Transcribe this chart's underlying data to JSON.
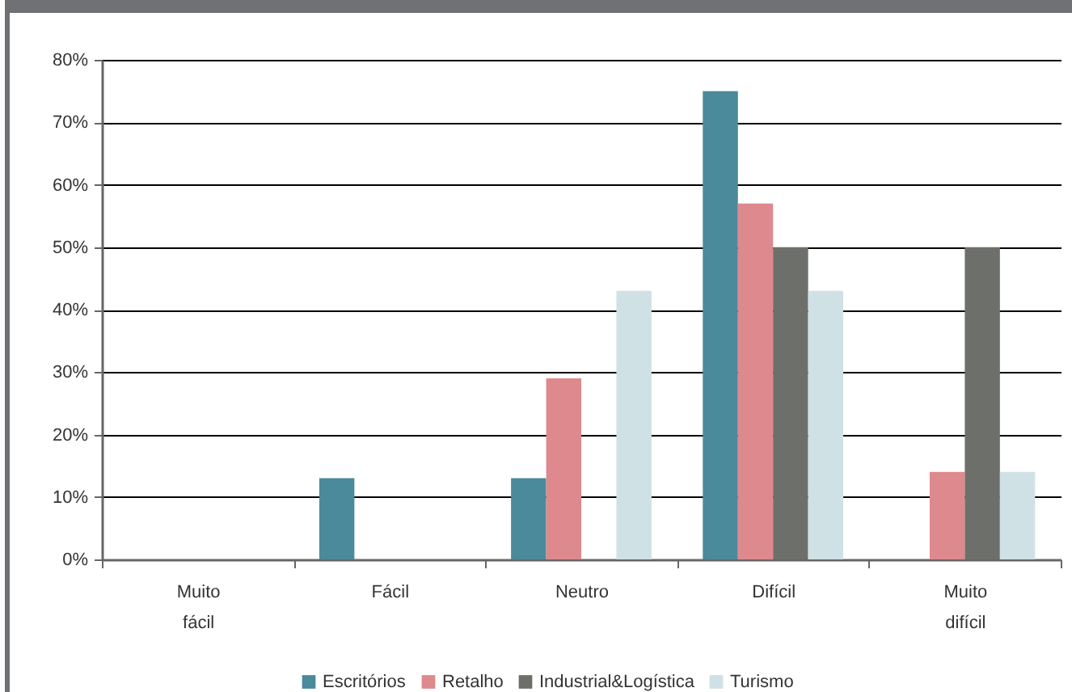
{
  "chart_data": {
    "type": "bar",
    "categories": [
      "Muito fácil",
      "Fácil",
      "Neutro",
      "Difícil",
      "Muito difícil"
    ],
    "series": [
      {
        "name": "Escritórios",
        "color": "#4a8a9a",
        "values": [
          0,
          13,
          13,
          75,
          0
        ]
      },
      {
        "name": "Retalho",
        "color": "#de898d",
        "values": [
          0,
          0,
          29,
          57,
          14
        ]
      },
      {
        "name": "Industrial&Logística",
        "color": "#6d6f6a",
        "values": [
          0,
          0,
          0,
          50,
          50
        ]
      },
      {
        "name": "Turismo",
        "color": "#d0e1e6",
        "values": [
          0,
          0,
          43,
          43,
          14
        ]
      }
    ],
    "ylim": [
      0,
      80
    ],
    "yticks": [
      {
        "value": 0,
        "label": "0%"
      },
      {
        "value": 10,
        "label": "10%"
      },
      {
        "value": 20,
        "label": "20%"
      },
      {
        "value": 30,
        "label": "30%"
      },
      {
        "value": 40,
        "label": "40%"
      },
      {
        "value": 50,
        "label": "50%"
      },
      {
        "value": 60,
        "label": "60%"
      },
      {
        "value": 70,
        "label": "70%"
      },
      {
        "value": 80,
        "label": "80%"
      }
    ],
    "grid": "y",
    "legend": "bottom"
  }
}
